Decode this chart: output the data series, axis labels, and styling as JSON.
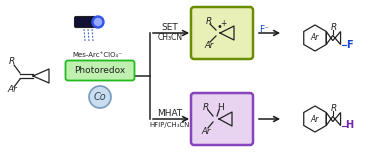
{
  "bg_color": "#ffffff",
  "arrow_color": "#1a1a1a",
  "set_label": "SET",
  "set_sublabel": "CH₃CN",
  "mhat_label": "MHAT",
  "mhat_sublabel": "HFIP/CH₃CN",
  "photoredox_label": "Photoredox",
  "co_label": "Co",
  "mes_arc_label": "Mes-Arc⁺ClO₄⁻",
  "intermediate1_box_color": "#6b8e00",
  "intermediate1_box_fill": "#e8f0b8",
  "intermediate2_box_color": "#8844bb",
  "intermediate2_box_fill": "#e8d4f0",
  "photoredox_box_color": "#22bb22",
  "photoredox_box_fill": "#c0f0b0",
  "co_circle_edge": "#7799bb",
  "co_circle_fill": "#c8ddf0",
  "f_color": "#1144cc",
  "h_color": "#7722aa",
  "lc": "#222222",
  "layout": {
    "fig_w": 3.78,
    "fig_h": 1.52,
    "dpi": 100
  }
}
